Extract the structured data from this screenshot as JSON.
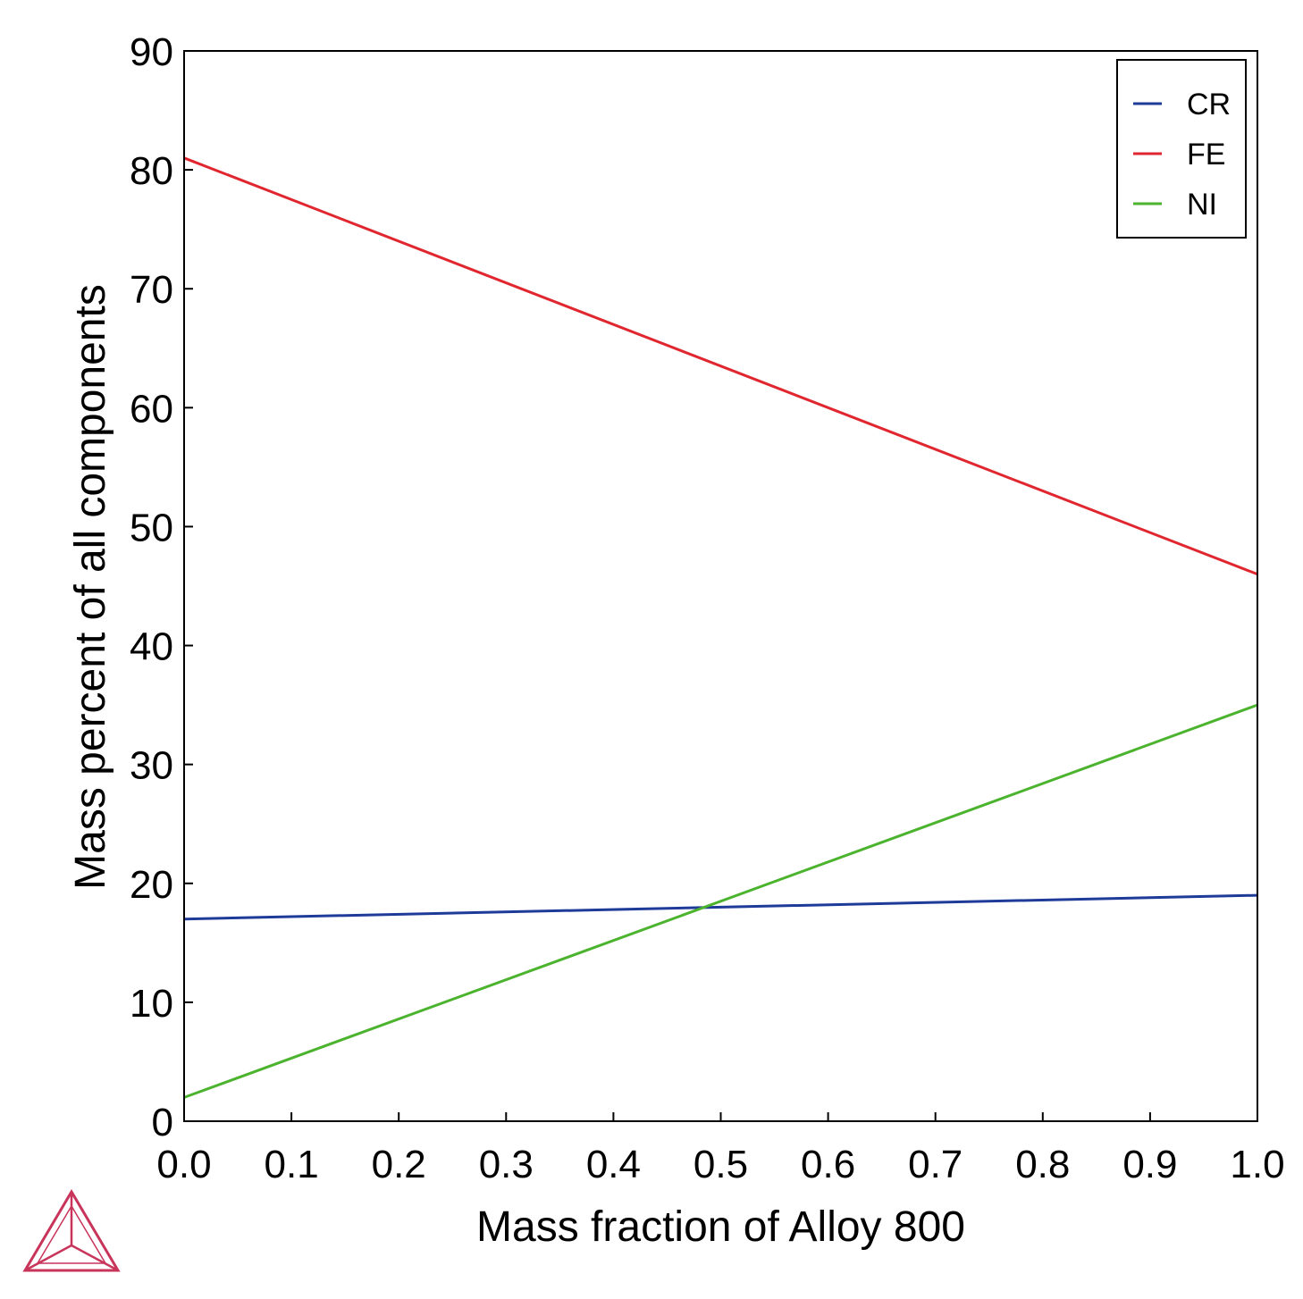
{
  "chart_data": {
    "type": "line",
    "xlabel": "Mass fraction of Alloy 800",
    "ylabel": "Mass percent of all components",
    "xlim": [
      0,
      1
    ],
    "ylim": [
      0,
      90
    ],
    "xticks": [
      "0.0",
      "0.1",
      "0.2",
      "0.3",
      "0.4",
      "0.5",
      "0.6",
      "0.7",
      "0.8",
      "0.9",
      "1.0"
    ],
    "yticks": [
      "0",
      "10",
      "20",
      "30",
      "40",
      "50",
      "60",
      "70",
      "80",
      "90"
    ],
    "grid": false,
    "legend_position": "top-right",
    "series": [
      {
        "name": "CR",
        "color": "#1f3b9a",
        "x": [
          0.0,
          1.0
        ],
        "y": [
          17,
          19
        ]
      },
      {
        "name": "FE",
        "color": "#e0262f",
        "x": [
          0.0,
          1.0
        ],
        "y": [
          81,
          46
        ]
      },
      {
        "name": "NI",
        "color": "#4bb32e",
        "x": [
          0.0,
          1.0
        ],
        "y": [
          2,
          35
        ]
      }
    ]
  },
  "logo": {
    "name": "thermo-calc-logo-icon",
    "color": "#c8345a"
  }
}
